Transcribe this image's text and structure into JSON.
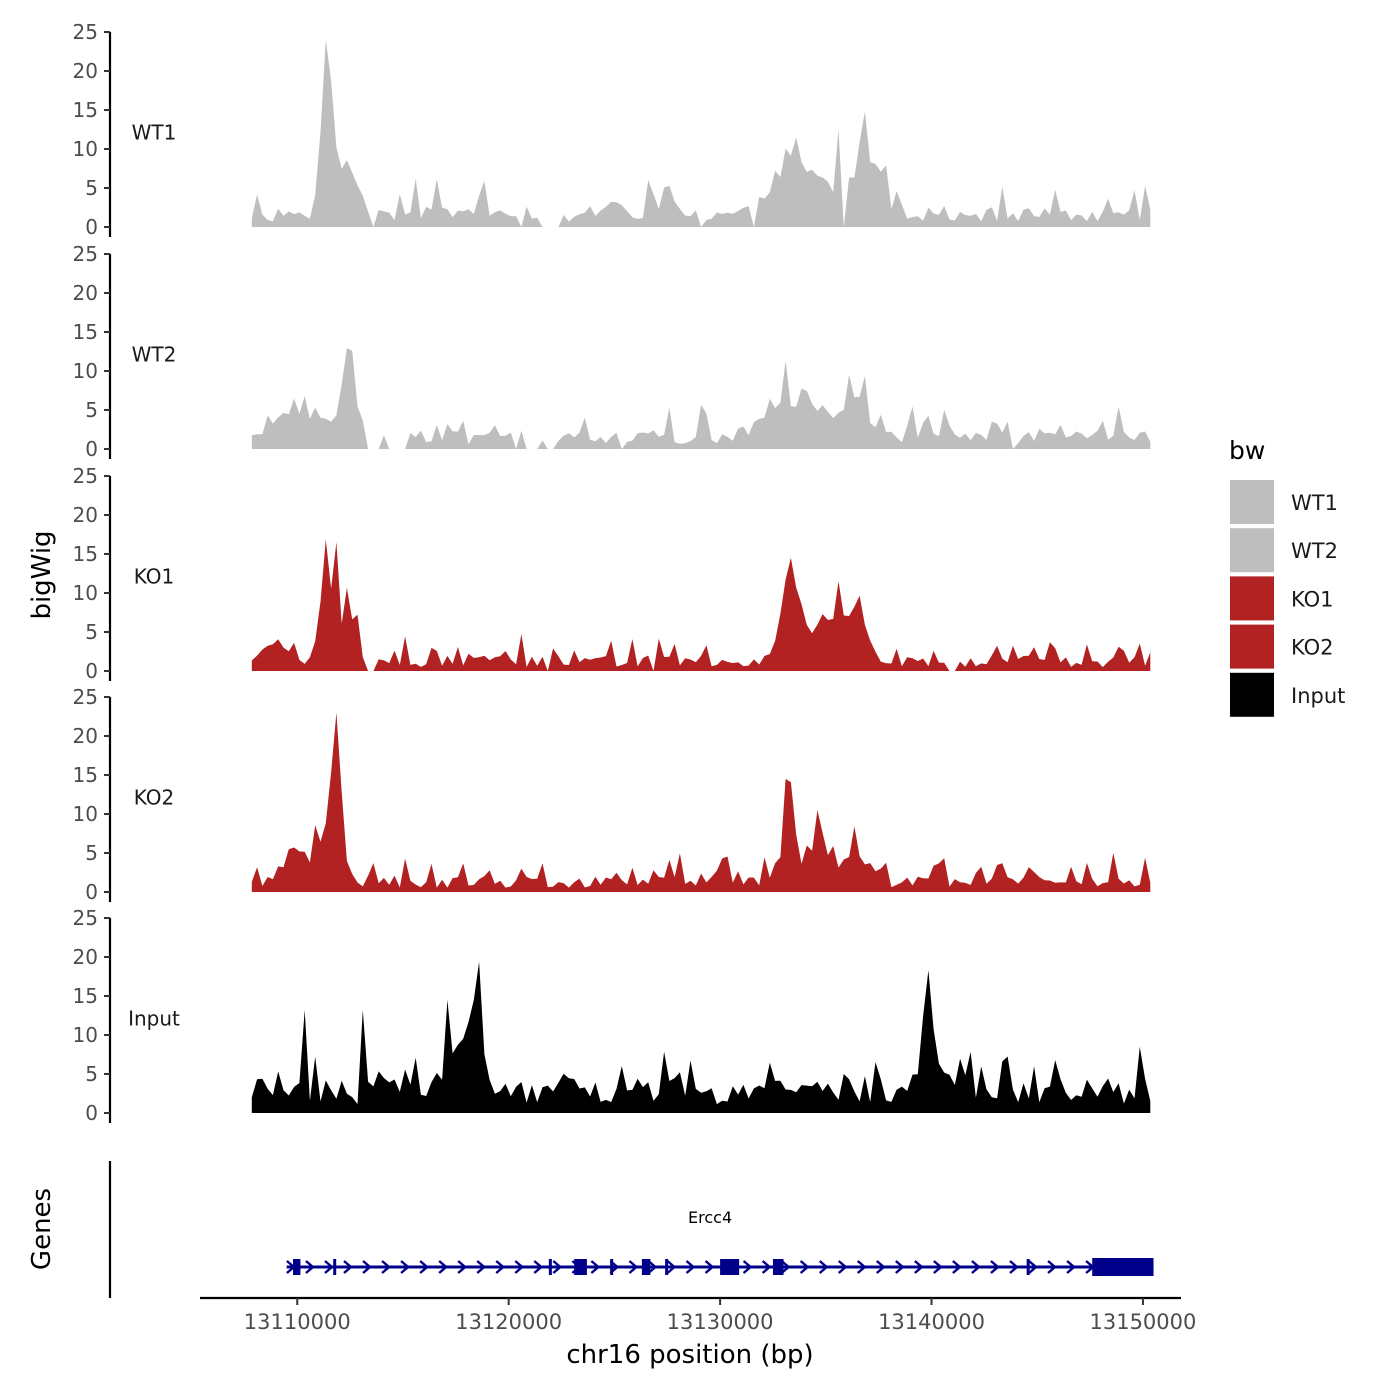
{
  "chart_data": {
    "type": "area",
    "ylabel": "bigWig",
    "xlabel": "chr16 position (bp)",
    "genes_label": "Genes",
    "legend": {
      "title": "bw",
      "items": [
        {
          "label": "WT1",
          "color": "#bebebe"
        },
        {
          "label": "WT2",
          "color": "#bebebe"
        },
        {
          "label": "KO1",
          "color": "#b22222"
        },
        {
          "label": "KO2",
          "color": "#b22222"
        },
        {
          "label": "Input",
          "color": "#000000"
        }
      ]
    },
    "ylim": [
      0,
      25
    ],
    "yticks": [
      "0",
      "5",
      "10",
      "15",
      "20",
      "25"
    ],
    "xlim": [
      13105400,
      13151800
    ],
    "xticks": [
      {
        "value": 13110000,
        "label": "13110000"
      },
      {
        "value": 13120000,
        "label": "13120000"
      },
      {
        "value": 13130000,
        "label": "13130000"
      },
      {
        "value": 13140000,
        "label": "13140000"
      },
      {
        "value": 13150000,
        "label": "13150000"
      }
    ],
    "track_start": 13107850,
    "track_end": 13150500,
    "bin_size": 250,
    "tracks": [
      {
        "name": "WT1",
        "color": "#bebebe",
        "seed": 11,
        "base": 2.6,
        "noise": 4.2,
        "peaks": [
          [
            13111400,
            22.0,
            380
          ],
          [
            13112300,
            8.0,
            900
          ],
          [
            13133800,
            8.0,
            1600
          ],
          [
            13137000,
            11.0,
            900
          ],
          [
            13118800,
            4.0,
            250
          ],
          [
            13125000,
            3.0,
            400
          ]
        ],
        "gaps": [
          [
            13113600,
            13113800
          ],
          [
            13120400,
            13120700
          ],
          [
            13121600,
            13122500
          ],
          [
            13128900,
            13129200
          ],
          [
            13131600,
            13131800
          ],
          [
            13135800,
            13136000
          ]
        ],
        "spikes": [
          [
            13111400,
            24.0
          ],
          [
            13136800,
            14.8
          ],
          [
            13135600,
            12.5
          ]
        ]
      },
      {
        "name": "WT2",
        "color": "#bebebe",
        "seed": 23,
        "base": 2.4,
        "noise": 3.6,
        "peaks": [
          [
            13110200,
            5.0,
            1800
          ],
          [
            13112400,
            9.0,
            500
          ],
          [
            13133600,
            7.0,
            1700
          ],
          [
            13136500,
            5.5,
            1200
          ]
        ],
        "gaps": [
          [
            13113300,
            13113900
          ],
          [
            13114200,
            13115100
          ],
          [
            13120200,
            13120500
          ],
          [
            13120700,
            13121400
          ],
          [
            13121700,
            13122200
          ],
          [
            13125200,
            13125500
          ],
          [
            13143800,
            13144000
          ]
        ],
        "spikes": [
          [
            13112500,
            12.6
          ],
          [
            13133100,
            11.3
          ],
          [
            13136000,
            9.5
          ]
        ]
      },
      {
        "name": "KO1",
        "color": "#b22222",
        "seed": 37,
        "base": 2.0,
        "noise": 3.4,
        "peaks": [
          [
            13111500,
            14.0,
            500
          ],
          [
            13112500,
            7.0,
            500
          ],
          [
            13133300,
            12.0,
            500
          ],
          [
            13134500,
            6.0,
            1300
          ],
          [
            13136300,
            7.0,
            900
          ],
          [
            13109000,
            3.0,
            900
          ]
        ],
        "gaps": [
          [
            13113200,
            13113700
          ],
          [
            13121800,
            13122000
          ],
          [
            13126800,
            13127000
          ],
          [
            13140700,
            13141100
          ]
        ],
        "spikes": [
          [
            13111300,
            16.9
          ],
          [
            13111800,
            16.5
          ],
          [
            13133300,
            14.5
          ],
          [
            13135600,
            11.5
          ]
        ]
      },
      {
        "name": "KO2",
        "color": "#b22222",
        "seed": 53,
        "base": 2.1,
        "noise": 3.4,
        "peaks": [
          [
            13111800,
            18.0,
            320
          ],
          [
            13111300,
            6.0,
            900
          ],
          [
            13133300,
            12.0,
            400
          ],
          [
            13134800,
            7.0,
            800
          ],
          [
            13109800,
            4.0,
            600
          ],
          [
            13130200,
            5.0,
            300
          ],
          [
            13136500,
            5.0,
            700
          ]
        ],
        "gaps": [],
        "spikes": [
          [
            13111800,
            23.0
          ],
          [
            13133200,
            14.5
          ],
          [
            13134500,
            10.5
          ]
        ]
      },
      {
        "name": "Input",
        "color": "#000000",
        "seed": 71,
        "base": 4.5,
        "noise": 5.2,
        "peaks": [
          [
            13118400,
            10.0,
            500
          ],
          [
            13139700,
            8.0,
            500
          ],
          [
            13117800,
            4.0,
            1200
          ],
          [
            13140500,
            3.0,
            1000
          ]
        ],
        "gaps": [],
        "spikes": [
          [
            13118500,
            19.4
          ],
          [
            13139800,
            18.3
          ],
          [
            13110300,
            13.2
          ],
          [
            13113200,
            13.2
          ],
          [
            13117000,
            14.5
          ]
        ]
      }
    ],
    "gene": {
      "name": "Ercc4",
      "color": "#00008b",
      "start": 13109500,
      "end": 13150500,
      "exons": [
        [
          13109800,
          13110150
        ],
        [
          13111700,
          13111800
        ],
        [
          13121900,
          13122000
        ],
        [
          13123100,
          13123700
        ],
        [
          13124800,
          13124900
        ],
        [
          13126300,
          13126700
        ],
        [
          13127400,
          13127500
        ],
        [
          13130000,
          13130900
        ],
        [
          13132500,
          13133000
        ],
        [
          13144500,
          13144600
        ],
        [
          13147600,
          13150500
        ]
      ]
    }
  }
}
